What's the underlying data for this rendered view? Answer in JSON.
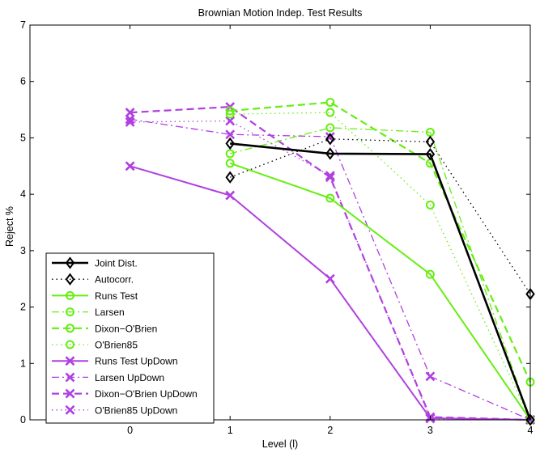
{
  "chart_data": {
    "type": "line",
    "title": "Brownian Motion Indep. Test Results",
    "xlabel": "Level (l)",
    "ylabel": "Reject %",
    "xlim": [
      -1,
      4
    ],
    "ylim": [
      0,
      7
    ],
    "xticks": [
      "0",
      "1",
      "2",
      "3",
      "4"
    ],
    "yticks": [
      "0",
      "1",
      "2",
      "3",
      "4",
      "5",
      "6",
      "7"
    ],
    "legend_position": "bottom-left",
    "series": [
      {
        "name": "Joint Dist.",
        "x": [
          1,
          2,
          3,
          4
        ],
        "values": [
          4.9,
          4.72,
          4.71,
          0.0
        ],
        "color": "#000000",
        "dash": "solid",
        "marker": "diamond",
        "width": 2.6
      },
      {
        "name": "Autocorr.",
        "x": [
          1,
          2,
          3,
          4
        ],
        "values": [
          4.3,
          4.98,
          4.93,
          2.23
        ],
        "color": "#000000",
        "dash": "dot",
        "marker": "diamond",
        "width": 1.3
      },
      {
        "name": "Runs Test",
        "x": [
          1,
          2,
          3,
          4
        ],
        "values": [
          4.55,
          3.93,
          2.58,
          0.0
        ],
        "color": "#66ee11",
        "dash": "solid",
        "marker": "circle",
        "width": 2.0
      },
      {
        "name": "Larsen",
        "x": [
          1,
          2,
          3,
          4
        ],
        "values": [
          4.72,
          5.18,
          5.1,
          0.0
        ],
        "color": "#66ee11",
        "dash": "dashdot",
        "marker": "circle",
        "width": 1.3
      },
      {
        "name": "Dixon−O'Brien",
        "x": [
          1,
          2,
          3,
          4
        ],
        "values": [
          5.48,
          5.63,
          4.55,
          0.67
        ],
        "color": "#66ee11",
        "dash": "dash",
        "marker": "circle",
        "width": 2.2
      },
      {
        "name": "O'Brien85",
        "x": [
          1,
          2,
          3,
          4
        ],
        "values": [
          5.42,
          5.45,
          3.81,
          0.0
        ],
        "color": "#66ee11",
        "dash": "dot",
        "marker": "circle",
        "width": 1.3
      },
      {
        "name": "Runs Test UpDown",
        "x": [
          0,
          1,
          2,
          3,
          4
        ],
        "values": [
          4.5,
          3.98,
          2.5,
          0.03,
          0.0
        ],
        "color": "#b040e0",
        "dash": "solid",
        "marker": "x",
        "width": 2.0
      },
      {
        "name": "Larsen UpDown",
        "x": [
          0,
          1,
          2,
          3,
          4
        ],
        "values": [
          5.33,
          5.06,
          5.02,
          0.77,
          0.0
        ],
        "color": "#b040e0",
        "dash": "dashdot",
        "marker": "x",
        "width": 1.3
      },
      {
        "name": "Dixon−O'Brien UpDown",
        "x": [
          0,
          1,
          2,
          3,
          4
        ],
        "values": [
          5.45,
          5.55,
          4.3,
          0.05,
          0.0
        ],
        "color": "#b040e0",
        "dash": "dash",
        "marker": "x",
        "width": 2.2
      },
      {
        "name": "O'Brien85 UpDown",
        "x": [
          0,
          1,
          2,
          3,
          4
        ],
        "values": [
          5.28,
          5.3,
          4.33,
          0.02,
          0.0
        ],
        "color": "#b040e0",
        "dash": "dot",
        "marker": "x",
        "width": 1.3
      }
    ]
  }
}
